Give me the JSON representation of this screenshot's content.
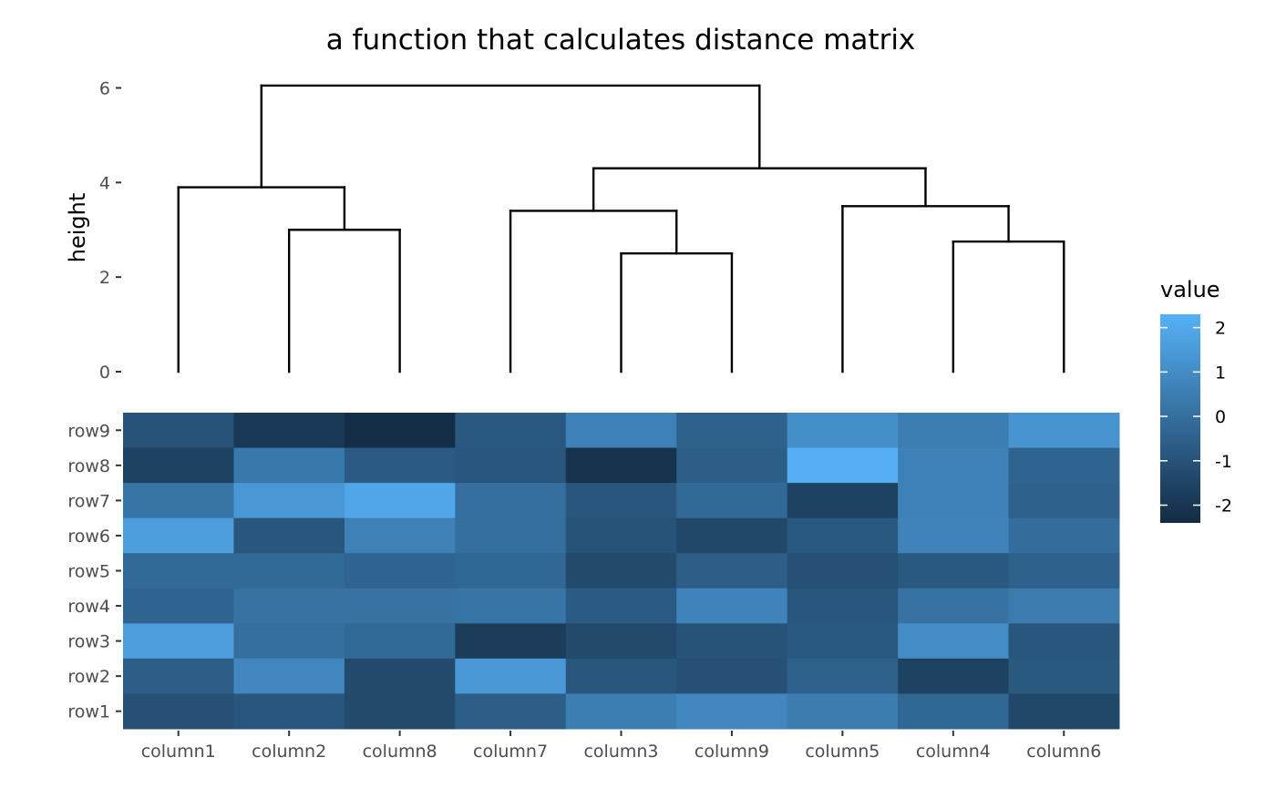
{
  "chart_data": [
    {
      "type": "dendrogram",
      "title": "a function that calculates distance matrix",
      "ylabel": "height",
      "xlabel": "",
      "ylim": [
        0,
        6
      ],
      "yticks": [
        0,
        2,
        4,
        6
      ],
      "leaves": [
        "column1",
        "column2",
        "column8",
        "column7",
        "column3",
        "column9",
        "column5",
        "column4",
        "column6"
      ],
      "merges": [
        {
          "left": 2,
          "right": 3,
          "height": 3.0
        },
        {
          "left": 1,
          "right": "m0",
          "height": 3.9
        },
        {
          "left": 5,
          "right": 6,
          "height": 2.5
        },
        {
          "left": 4,
          "right": "m2",
          "height": 3.4
        },
        {
          "left": 8,
          "right": 9,
          "height": 2.75
        },
        {
          "left": 7,
          "right": "m4",
          "height": 3.5
        },
        {
          "left": "m3",
          "right": "m5",
          "height": 4.3
        },
        {
          "left": "m1",
          "right": "m6",
          "height": 6.05
        }
      ]
    },
    {
      "type": "heatmap",
      "columns": [
        "column1",
        "column2",
        "column8",
        "column7",
        "column3",
        "column9",
        "column5",
        "column4",
        "column6"
      ],
      "rows": [
        "row9",
        "row8",
        "row7",
        "row6",
        "row5",
        "row4",
        "row3",
        "row2",
        "row1"
      ],
      "values": [
        [
          -1.0,
          -1.9,
          -2.3,
          -0.8,
          0.6,
          -0.5,
          1.1,
          0.5,
          1.3
        ],
        [
          -1.6,
          0.3,
          -0.7,
          -0.9,
          -2.1,
          -0.6,
          2.2,
          0.6,
          -0.4
        ],
        [
          0.2,
          1.4,
          1.9,
          0.0,
          -0.9,
          -0.2,
          -1.6,
          0.6,
          -0.5
        ],
        [
          1.6,
          -0.9,
          0.6,
          0.0,
          -1.0,
          -1.4,
          -0.8,
          0.7,
          -0.1
        ],
        [
          -0.2,
          -0.2,
          -0.4,
          -0.3,
          -1.3,
          -0.6,
          -1.1,
          -0.8,
          -0.5
        ],
        [
          -0.4,
          0.1,
          0.1,
          0.2,
          -0.7,
          0.7,
          -0.9,
          0.1,
          0.4
        ],
        [
          1.6,
          0.0,
          -0.2,
          -1.8,
          -1.3,
          -1.0,
          -0.8,
          1.0,
          -0.9
        ],
        [
          -0.6,
          0.8,
          -1.3,
          1.4,
          -0.9,
          -1.1,
          -0.5,
          -1.6,
          -0.8
        ],
        [
          -1.1,
          -0.9,
          -1.3,
          -0.6,
          0.5,
          0.8,
          0.4,
          -0.3,
          -1.4
        ]
      ],
      "legend": {
        "title": "value",
        "ticks": [
          2,
          1,
          0,
          -1,
          -2
        ],
        "tick_labels": [
          "2",
          "1",
          "0",
          "-1",
          "-2"
        ],
        "range": [
          -2.4,
          2.3
        ],
        "color_low": "#132b43",
        "color_high": "#56b1f7"
      }
    }
  ]
}
